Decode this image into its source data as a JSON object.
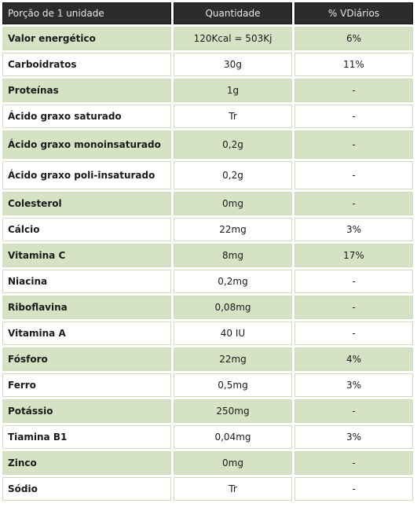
{
  "header": {
    "portion": "Porção de 1 unidade",
    "quantity": "Quantidade",
    "daily_value": "% VDiários"
  },
  "rows": [
    {
      "name": "Valor energético",
      "qty": "120Kcal = 503Kj",
      "vd": "6%"
    },
    {
      "name": "Carboidratos",
      "qty": "30g",
      "vd": "11%"
    },
    {
      "name": "Proteínas",
      "qty": "1g",
      "vd": "-"
    },
    {
      "name": "Ácido graxo saturado",
      "qty": "Tr",
      "vd": "-"
    },
    {
      "name": "Ácido graxo monoinsaturado",
      "qty": "0,2g",
      "vd": "-"
    },
    {
      "name": "Ácido graxo poli-insaturado",
      "qty": "0,2g",
      "vd": "-"
    },
    {
      "name": "Colesterol",
      "qty": "0mg",
      "vd": "-"
    },
    {
      "name": "Cálcio",
      "qty": "22mg",
      "vd": "3%"
    },
    {
      "name": "Vitamina C",
      "qty": "8mg",
      "vd": "17%"
    },
    {
      "name": "Niacina",
      "qty": "0,2mg",
      "vd": "-"
    },
    {
      "name": "Riboflavina",
      "qty": "0,08mg",
      "vd": "-"
    },
    {
      "name": "Vitamina A",
      "qty": "40 IU",
      "vd": "-"
    },
    {
      "name": "Fósforo",
      "qty": "22mg",
      "vd": "4%"
    },
    {
      "name": "Ferro",
      "qty": "0,5mg",
      "vd": "3%"
    },
    {
      "name": "Potássio",
      "qty": "250mg",
      "vd": "-"
    },
    {
      "name": "Tiamina B1",
      "qty": "0,04mg",
      "vd": "3%"
    },
    {
      "name": "Zinco",
      "qty": "0mg",
      "vd": "-"
    },
    {
      "name": "Sódio",
      "qty": "Tr",
      "vd": "-"
    }
  ],
  "colors": {
    "header_bg": "#2c2c2c",
    "shade_bg": "#d5e2c4",
    "plain_bg": "#ffffff"
  }
}
